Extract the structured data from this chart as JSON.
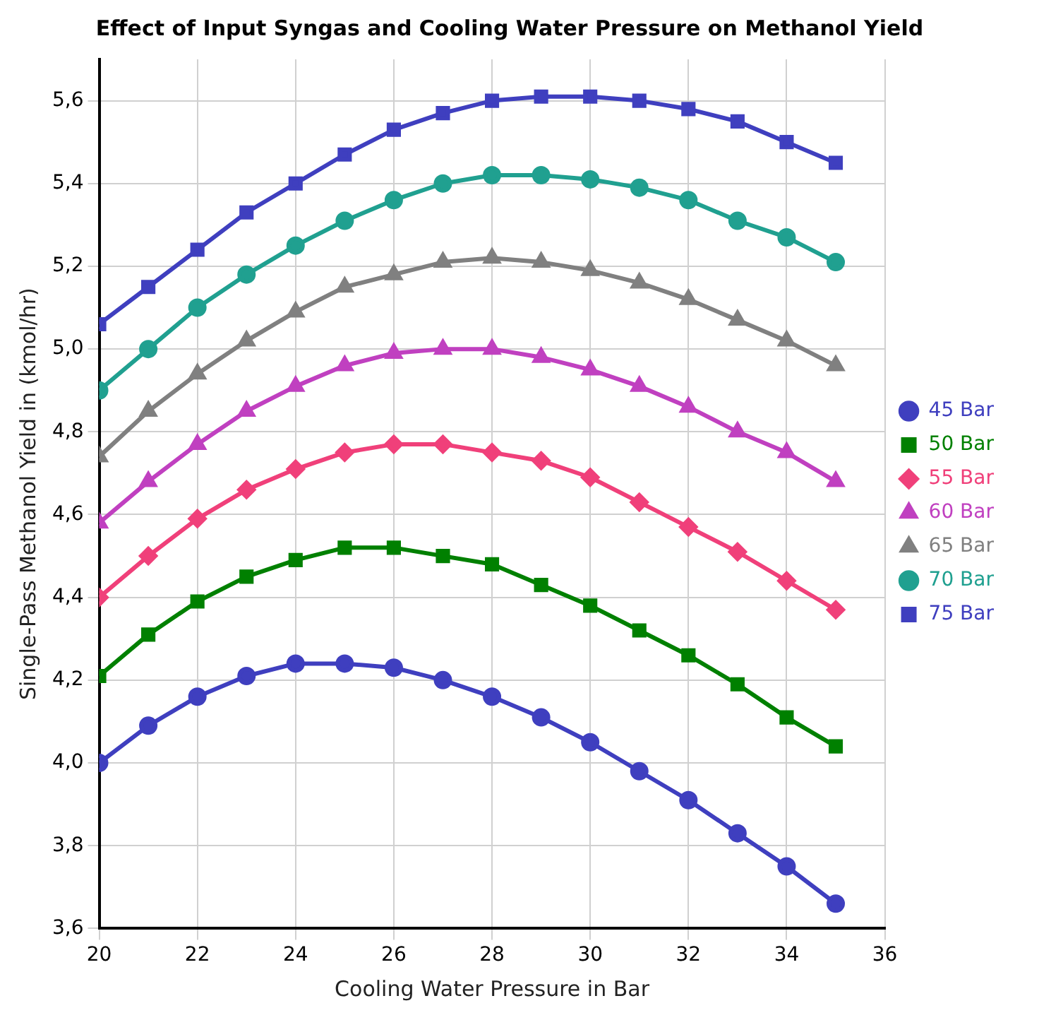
{
  "chart_data": {
    "type": "line",
    "title": "Effect of Input Syngas and Cooling Water Pressure on Methanol Yield",
    "xlabel": "Cooling Water Pressure in Bar",
    "ylabel": "Single-Pass Methanol Yield in (kmol/hr)",
    "x": [
      20,
      21,
      22,
      23,
      24,
      25,
      26,
      27,
      28,
      29,
      30,
      31,
      32,
      33,
      34,
      35
    ],
    "series": [
      {
        "name": "45 Bar",
        "color": "#3f3fbf",
        "marker": "circle",
        "values": [
          4.0,
          4.09,
          4.16,
          4.21,
          4.24,
          4.24,
          4.23,
          4.2,
          4.16,
          4.11,
          4.05,
          3.98,
          3.91,
          3.83,
          3.75,
          3.66
        ]
      },
      {
        "name": "50 Bar",
        "color": "#008000",
        "marker": "square",
        "values": [
          4.21,
          4.31,
          4.39,
          4.45,
          4.49,
          4.52,
          4.52,
          4.5,
          4.48,
          4.43,
          4.38,
          4.32,
          4.26,
          4.19,
          4.11,
          4.04
        ]
      },
      {
        "name": "55 Bar",
        "color": "#f0407a",
        "marker": "diamond",
        "values": [
          4.4,
          4.5,
          4.59,
          4.66,
          4.71,
          4.75,
          4.77,
          4.77,
          4.75,
          4.73,
          4.69,
          4.63,
          4.57,
          4.51,
          4.44,
          4.37
        ]
      },
      {
        "name": "60 Bar",
        "color": "#c040c0",
        "marker": "triangle",
        "values": [
          4.58,
          4.68,
          4.77,
          4.85,
          4.91,
          4.96,
          4.99,
          5.0,
          5.0,
          4.98,
          4.95,
          4.91,
          4.86,
          4.8,
          4.75,
          4.68
        ]
      },
      {
        "name": "65 Bar",
        "color": "#808080",
        "marker": "triangle",
        "values": [
          4.74,
          4.85,
          4.94,
          5.02,
          5.09,
          5.15,
          5.18,
          5.21,
          5.22,
          5.21,
          5.19,
          5.16,
          5.12,
          5.07,
          5.02,
          4.96
        ]
      },
      {
        "name": "70 Bar",
        "color": "#20a090",
        "marker": "circle",
        "values": [
          4.9,
          5.0,
          5.1,
          5.18,
          5.25,
          5.31,
          5.36,
          5.4,
          5.42,
          5.42,
          5.41,
          5.39,
          5.36,
          5.31,
          5.27,
          5.21
        ]
      },
      {
        "name": "75 Bar",
        "color": "#3f3fbf",
        "marker": "square",
        "values": [
          5.06,
          5.15,
          5.24,
          5.33,
          5.4,
          5.47,
          5.53,
          5.57,
          5.6,
          5.61,
          5.61,
          5.6,
          5.58,
          5.55,
          5.5,
          5.45
        ]
      }
    ],
    "xlim": [
      20,
      36
    ],
    "xticks": [
      20,
      22,
      24,
      26,
      28,
      30,
      32,
      34,
      36
    ],
    "ylim": [
      3.6,
      5.7
    ],
    "yticks": [
      {
        "value": 3.6,
        "label": "3,6"
      },
      {
        "value": 3.8,
        "label": "3,8"
      },
      {
        "value": 4.0,
        "label": "4,0"
      },
      {
        "value": 4.2,
        "label": "4,2"
      },
      {
        "value": 4.4,
        "label": "4,4"
      },
      {
        "value": 4.6,
        "label": "4,6"
      },
      {
        "value": 4.8,
        "label": "4,8"
      },
      {
        "value": 5.0,
        "label": "5,0"
      },
      {
        "value": 5.2,
        "label": "5,2"
      },
      {
        "value": 5.4,
        "label": "5,4"
      },
      {
        "value": 5.6,
        "label": "5,6"
      }
    ],
    "grid": true,
    "legend": "right",
    "line_style": "solid"
  }
}
